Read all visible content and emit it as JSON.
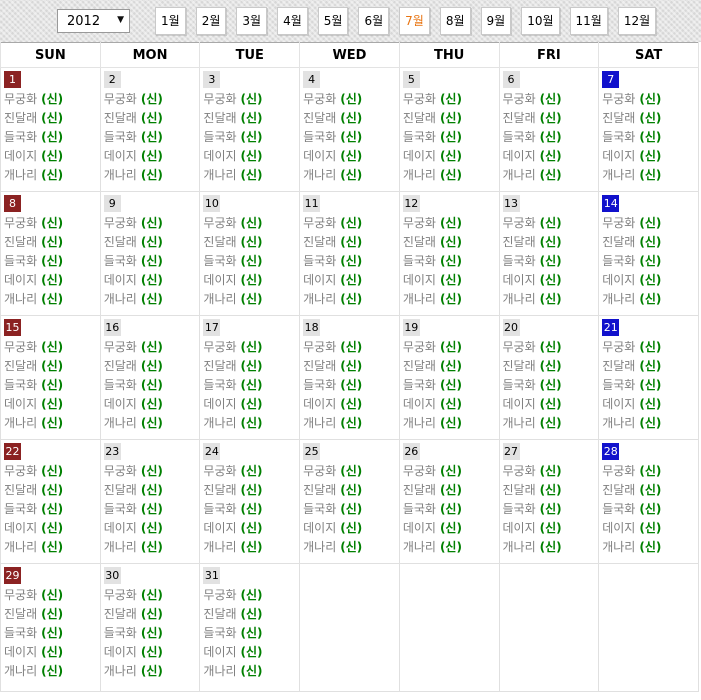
{
  "banner": {
    "year_select": {
      "value": "2012",
      "options": [
        "2012"
      ]
    },
    "months": [
      "1월",
      "2월",
      "3월",
      "4월",
      "5월",
      "6월",
      "7월",
      "8월",
      "9월",
      "10월",
      "11월",
      "12월"
    ],
    "active_month_index": 6
  },
  "weekday_header": [
    {
      "label": "SUN",
      "type": "sun"
    },
    {
      "label": "MON",
      "type": "wk"
    },
    {
      "label": "TUE",
      "type": "wk"
    },
    {
      "label": "WED",
      "type": "wk"
    },
    {
      "label": "THU",
      "type": "wk"
    },
    {
      "label": "FRI",
      "type": "wk"
    },
    {
      "label": "SAT",
      "type": "sat"
    }
  ],
  "calendar": {
    "highlighted_day": 23,
    "weeks": [
      [
        1,
        2,
        3,
        4,
        5,
        6,
        7
      ],
      [
        8,
        9,
        10,
        11,
        12,
        13,
        14
      ],
      [
        15,
        16,
        17,
        18,
        19,
        20,
        21
      ],
      [
        22,
        23,
        24,
        25,
        26,
        27,
        28
      ],
      [
        29,
        30,
        31,
        null,
        null,
        null,
        null
      ]
    ],
    "flowers_per_day": [
      {
        "name": "무궁화",
        "tag": "(신)"
      },
      {
        "name": "진달래",
        "tag": "(신)"
      },
      {
        "name": "들국화",
        "tag": "(신)"
      },
      {
        "name": "데이지",
        "tag": "(신)"
      },
      {
        "name": "개나리",
        "tag": "(신)"
      }
    ]
  },
  "icons": {
    "year_dropdown_arrow": "▼"
  },
  "colors": {
    "sunday_text": "#ff0000",
    "saturday_text": "#0000ff",
    "sunday_badge": "#8b2222",
    "saturday_badge": "#1111cc",
    "weekday_badge": "#e2e2e2",
    "today_background": "#d4eaf2",
    "active_month_text": "#e87411",
    "flower_name_text": "#808080",
    "flower_tag_text": "#008000"
  }
}
